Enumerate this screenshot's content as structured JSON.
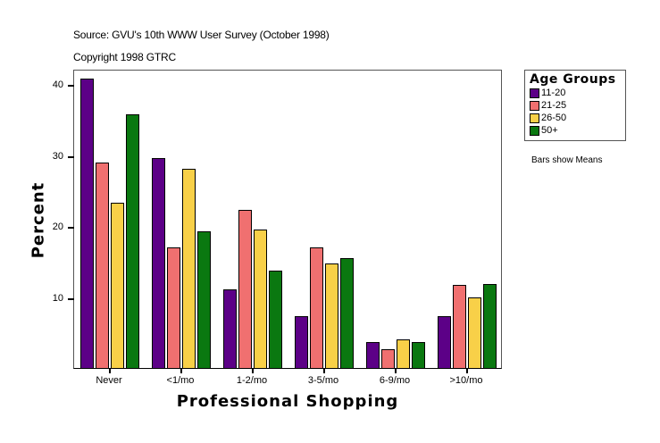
{
  "header": {
    "source": "Source: GVU's 10th WWW User Survey (October 1998)",
    "copyright": "Copyright 1998 GTRC"
  },
  "note": "Bars show Means",
  "legend": {
    "title": "Age Groups",
    "items": [
      {
        "label": "11-20",
        "color": "#5c0087"
      },
      {
        "label": "21-25",
        "color": "#f07070"
      },
      {
        "label": "26-50",
        "color": "#f8d048"
      },
      {
        "label": "50+",
        "color": "#0a7810"
      }
    ]
  },
  "chart_data": {
    "type": "bar",
    "title": "",
    "xlabel": "Professional Shopping",
    "ylabel": "Percent",
    "ylim": [
      0,
      42
    ],
    "yticks": [
      10,
      20,
      30,
      40
    ],
    "grid": false,
    "legend_position": "right",
    "legend_title": "Age Groups",
    "annotations": [
      "Bars show Means"
    ],
    "categories": [
      "Never",
      "<1/mo",
      "1-2/mo",
      "3-5/mo",
      "6-9/mo",
      ">10/mo"
    ],
    "series": [
      {
        "name": "11-20",
        "color": "#5c0087",
        "values": [
          40.7,
          29.5,
          11.1,
          7.3,
          3.7,
          7.3
        ]
      },
      {
        "name": "21-25",
        "color": "#f07070",
        "values": [
          28.9,
          17.0,
          22.3,
          17.0,
          2.6,
          11.7
        ]
      },
      {
        "name": "26-50",
        "color": "#f8d048",
        "values": [
          23.3,
          28.1,
          19.5,
          14.7,
          4.0,
          10.0
        ]
      },
      {
        "name": "50+",
        "color": "#0a7810",
        "values": [
          35.7,
          19.2,
          13.7,
          15.5,
          3.7,
          11.8
        ]
      }
    ]
  }
}
